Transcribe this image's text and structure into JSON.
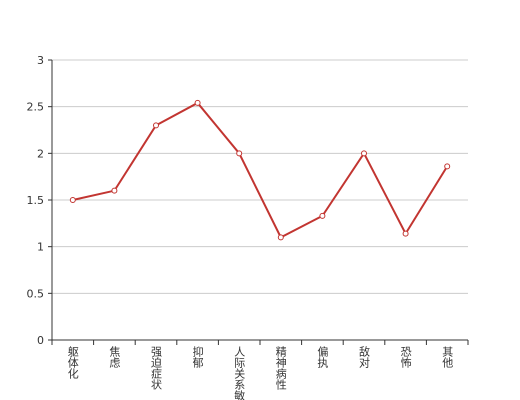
{
  "chart_data": {
    "type": "line",
    "categories": [
      "躯体化",
      "焦虑",
      "强迫症状",
      "抑郁",
      "人际关系敏感",
      "精神病性",
      "偏执",
      "敌对",
      "恐怖",
      "其他"
    ],
    "series": [
      {
        "color": "#c23531",
        "values": [
          1.5,
          1.6,
          2.3,
          2.54,
          2.0,
          1.1,
          1.33,
          2.0,
          1.14,
          1.86
        ]
      }
    ],
    "ylim": [
      0,
      3
    ],
    "yticks": [
      0,
      0.5,
      1,
      1.5,
      2,
      2.5,
      3
    ],
    "grid": true
  }
}
